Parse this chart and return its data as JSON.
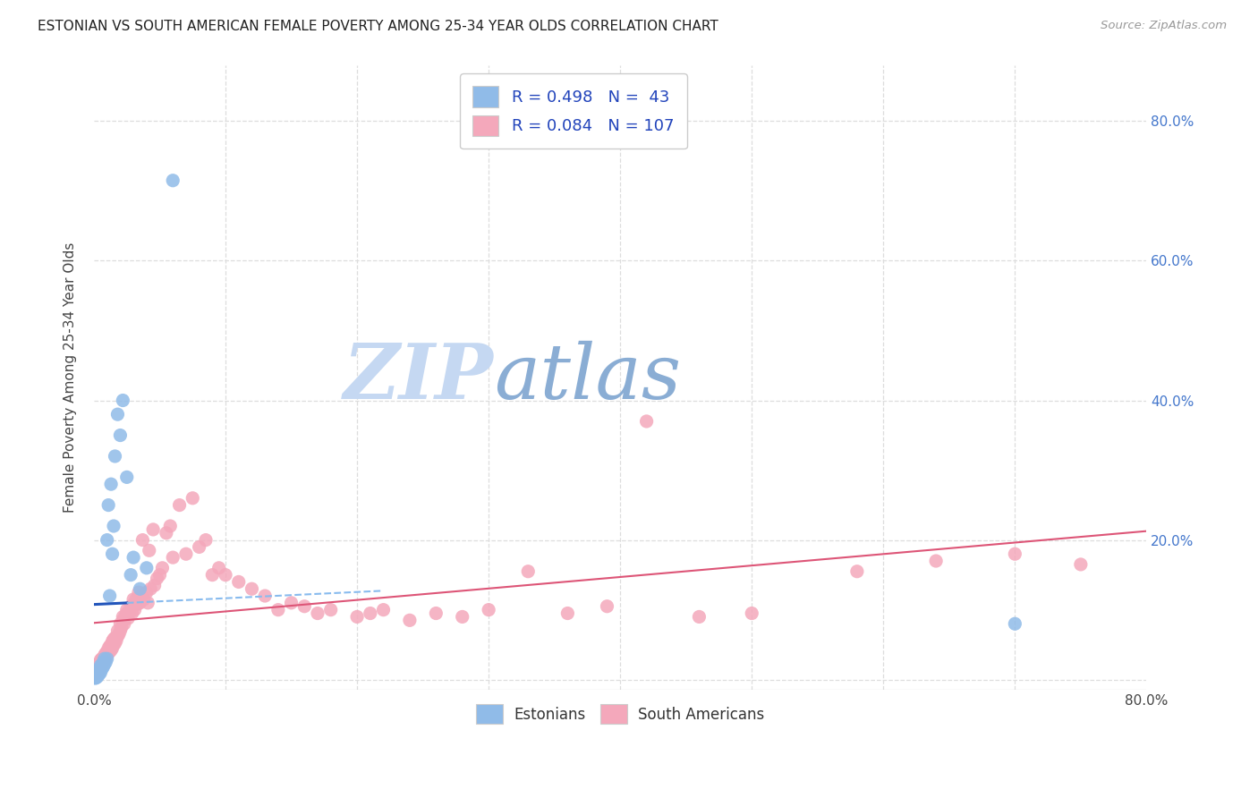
{
  "title": "ESTONIAN VS SOUTH AMERICAN FEMALE POVERTY AMONG 25-34 YEAR OLDS CORRELATION CHART",
  "source": "Source: ZipAtlas.com",
  "ylabel": "Female Poverty Among 25-34 Year Olds",
  "xlim": [
    0.0,
    0.8
  ],
  "ylim": [
    -0.015,
    0.88
  ],
  "xtick_left_label": "0.0%",
  "xtick_right_label": "80.0%",
  "ytick_vals": [
    0.0,
    0.2,
    0.4,
    0.6,
    0.8
  ],
  "right_ytick_labels": [
    "",
    "20.0%",
    "40.0%",
    "60.0%",
    "80.0%"
  ],
  "blue_R": 0.498,
  "blue_N": 43,
  "pink_R": 0.084,
  "pink_N": 107,
  "blue_color": "#90BBE8",
  "pink_color": "#F4A8BB",
  "trend_blue_solid": "#2255BB",
  "trend_blue_dash": "#88BBEE",
  "trend_pink": "#DD5577",
  "watermark_zip_color": "#C5D8F2",
  "watermark_atlas_color": "#8AADD4",
  "bg_color": "#FFFFFF",
  "grid_color": "#DDDDDD",
  "title_color": "#222222",
  "source_color": "#999999",
  "legend_text_color": "#2244BB",
  "right_tick_color": "#4477CC",
  "blue_x": [
    0.001,
    0.001,
    0.001,
    0.001,
    0.002,
    0.002,
    0.002,
    0.002,
    0.003,
    0.003,
    0.003,
    0.003,
    0.004,
    0.004,
    0.004,
    0.005,
    0.005,
    0.005,
    0.006,
    0.006,
    0.007,
    0.007,
    0.008,
    0.008,
    0.009,
    0.01,
    0.01,
    0.011,
    0.012,
    0.013,
    0.014,
    0.015,
    0.016,
    0.018,
    0.02,
    0.022,
    0.025,
    0.028,
    0.03,
    0.035,
    0.04,
    0.06,
    0.7
  ],
  "blue_y": [
    0.002,
    0.003,
    0.004,
    0.006,
    0.003,
    0.005,
    0.007,
    0.01,
    0.005,
    0.007,
    0.009,
    0.012,
    0.008,
    0.01,
    0.015,
    0.01,
    0.015,
    0.02,
    0.015,
    0.02,
    0.018,
    0.025,
    0.022,
    0.03,
    0.025,
    0.03,
    0.2,
    0.25,
    0.12,
    0.28,
    0.18,
    0.22,
    0.32,
    0.38,
    0.35,
    0.4,
    0.29,
    0.15,
    0.175,
    0.13,
    0.16,
    0.715,
    0.08
  ],
  "pink_x": [
    0.001,
    0.001,
    0.002,
    0.002,
    0.003,
    0.003,
    0.003,
    0.004,
    0.004,
    0.005,
    0.005,
    0.005,
    0.006,
    0.006,
    0.006,
    0.007,
    0.007,
    0.008,
    0.008,
    0.009,
    0.009,
    0.01,
    0.01,
    0.011,
    0.011,
    0.012,
    0.012,
    0.013,
    0.013,
    0.014,
    0.014,
    0.015,
    0.015,
    0.016,
    0.016,
    0.017,
    0.018,
    0.018,
    0.019,
    0.02,
    0.02,
    0.021,
    0.022,
    0.022,
    0.023,
    0.024,
    0.025,
    0.025,
    0.026,
    0.027,
    0.028,
    0.029,
    0.03,
    0.03,
    0.031,
    0.032,
    0.033,
    0.034,
    0.035,
    0.036,
    0.037,
    0.038,
    0.04,
    0.041,
    0.042,
    0.043,
    0.045,
    0.046,
    0.048,
    0.05,
    0.052,
    0.055,
    0.058,
    0.06,
    0.065,
    0.07,
    0.075,
    0.08,
    0.085,
    0.09,
    0.095,
    0.1,
    0.11,
    0.12,
    0.13,
    0.14,
    0.15,
    0.16,
    0.17,
    0.18,
    0.2,
    0.21,
    0.22,
    0.24,
    0.26,
    0.28,
    0.3,
    0.33,
    0.36,
    0.39,
    0.42,
    0.46,
    0.5,
    0.58,
    0.64,
    0.7,
    0.75
  ],
  "pink_y": [
    0.008,
    0.012,
    0.01,
    0.015,
    0.012,
    0.018,
    0.022,
    0.015,
    0.02,
    0.018,
    0.022,
    0.028,
    0.02,
    0.025,
    0.03,
    0.025,
    0.03,
    0.028,
    0.035,
    0.03,
    0.038,
    0.035,
    0.04,
    0.038,
    0.045,
    0.04,
    0.048,
    0.042,
    0.05,
    0.045,
    0.055,
    0.05,
    0.058,
    0.052,
    0.06,
    0.056,
    0.062,
    0.07,
    0.065,
    0.07,
    0.08,
    0.075,
    0.085,
    0.09,
    0.08,
    0.092,
    0.095,
    0.1,
    0.088,
    0.098,
    0.105,
    0.095,
    0.108,
    0.115,
    0.1,
    0.115,
    0.108,
    0.125,
    0.11,
    0.12,
    0.2,
    0.115,
    0.125,
    0.11,
    0.185,
    0.13,
    0.215,
    0.135,
    0.145,
    0.15,
    0.16,
    0.21,
    0.22,
    0.175,
    0.25,
    0.18,
    0.26,
    0.19,
    0.2,
    0.15,
    0.16,
    0.15,
    0.14,
    0.13,
    0.12,
    0.1,
    0.11,
    0.105,
    0.095,
    0.1,
    0.09,
    0.095,
    0.1,
    0.085,
    0.095,
    0.09,
    0.1,
    0.155,
    0.095,
    0.105,
    0.37,
    0.09,
    0.095,
    0.155,
    0.17,
    0.18,
    0.165
  ]
}
